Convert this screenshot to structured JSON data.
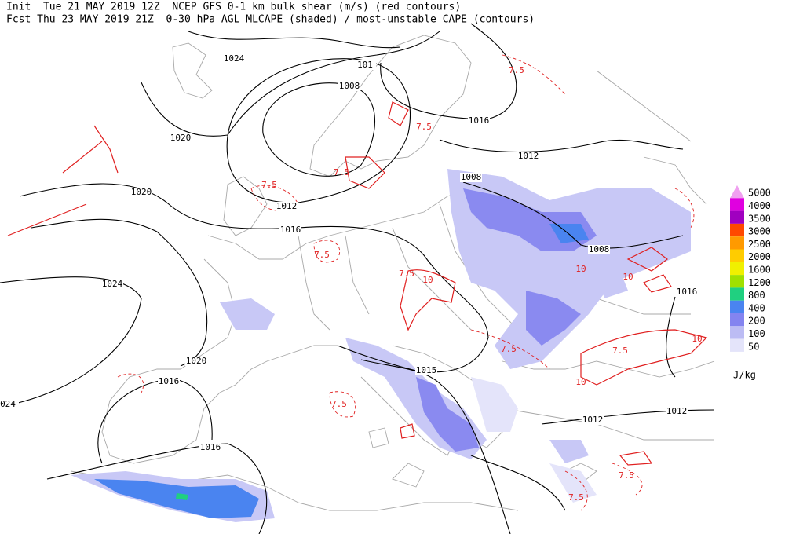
{
  "header": {
    "line1": "Init  Tue 21 MAY 2019 12Z  NCEP GFS 0-1 km bulk shear (m/s) (red contours)",
    "line2": "Fcst Thu 23 MAY 2019 21Z  0-30 hPa AGL MLCAPE (shaded) / most-unstable CAPE (contours)"
  },
  "isobar_labels": [
    "1024",
    "101",
    "1008",
    "1020",
    "1016",
    "1012",
    "1020",
    "1012",
    "1016",
    "1008",
    "1008",
    "1024",
    "1016",
    "1020",
    "1016",
    "1015",
    "024",
    "1012",
    "1012",
    "1016"
  ],
  "shear_labels": [
    "7.5",
    "7.5",
    "7.5",
    "7.5",
    "7.5",
    "7.5",
    "10",
    "10",
    "10",
    "10",
    "7.5",
    "7.5",
    "7.5",
    "7.5",
    "7.5",
    "10"
  ],
  "legend": {
    "items": [
      {
        "value": 5000,
        "color": "#f0a0f0"
      },
      {
        "value": 4000,
        "color": "#e000e0"
      },
      {
        "value": 3500,
        "color": "#a000c0"
      },
      {
        "value": 3000,
        "color": "#ff4800"
      },
      {
        "value": 2500,
        "color": "#ff9a00"
      },
      {
        "value": 2000,
        "color": "#ffcc00"
      },
      {
        "value": 1600,
        "color": "#f0f000"
      },
      {
        "value": 1200,
        "color": "#a0e000"
      },
      {
        "value": 800,
        "color": "#20d080"
      },
      {
        "value": 400,
        "color": "#4a84f0"
      },
      {
        "value": 200,
        "color": "#8484f0"
      },
      {
        "value": 100,
        "color": "#bcbcf4"
      },
      {
        "value": 50,
        "color": "#e4e4fa"
      }
    ],
    "unit": "J/kg"
  }
}
